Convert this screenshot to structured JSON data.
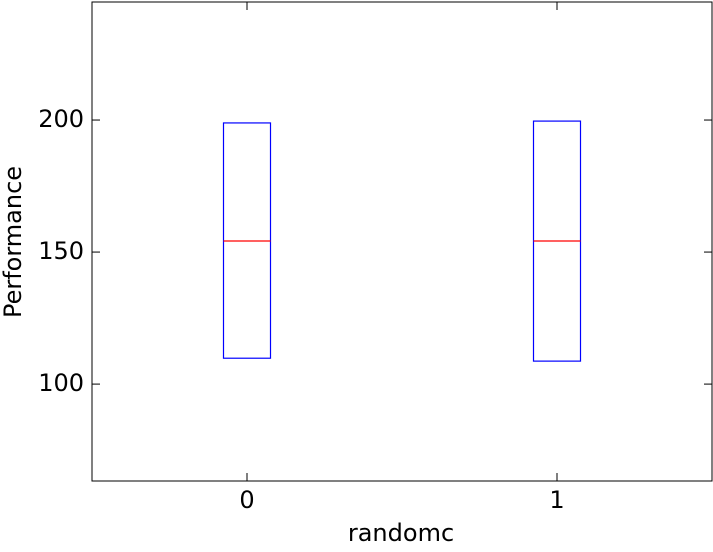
{
  "chart_data": {
    "type": "box",
    "xlabel": "randomc",
    "ylabel": "Performance",
    "categories": [
      "0",
      "1"
    ],
    "q1": [
      109.8,
      108.7
    ],
    "median": [
      154.2,
      154.2
    ],
    "q3": [
      198.9,
      199.6
    ],
    "box_color": "#0000ff",
    "median_color": "#ff0000",
    "ylim": [
      63.3,
      244.7
    ],
    "yticks": [
      100,
      150,
      200
    ]
  }
}
